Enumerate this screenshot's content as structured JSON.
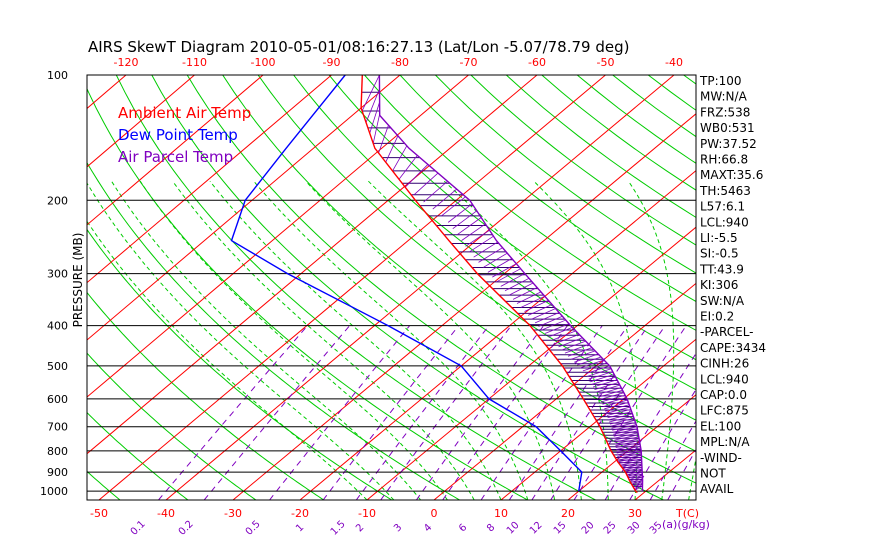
{
  "chart_data": {
    "type": "line",
    "title": "AIRS SkewT Diagram 2010-05-01/08:16:27.13 (Lat/Lon -5.07/78.79 deg)",
    "ylabel": "PRESSURE (MB)",
    "y_scale": "log",
    "ylim": [
      1050,
      100
    ],
    "pressure_ticks": [
      100,
      200,
      300,
      400,
      500,
      600,
      700,
      800,
      900,
      1000
    ],
    "temp_ticks_top": [
      -120,
      -110,
      -100,
      -90,
      -80,
      -70,
      -60,
      -50,
      -40
    ],
    "temp_ticks_bottom": [
      -50,
      -40,
      -30,
      -20,
      -10,
      0,
      10,
      20,
      30
    ],
    "temp_axis_label": "T(C)",
    "mixing_ratio_ticks": [
      0.1,
      0.2,
      0.5,
      1,
      1.5,
      2,
      3,
      4,
      6,
      8,
      10,
      12,
      15,
      20,
      25,
      30,
      35
    ],
    "mixing_ratio_label": "(a)(g/kg)",
    "legend": [
      {
        "label": "Ambient Air Temp",
        "color": "#ff0000"
      },
      {
        "label": "Dew Point Temp",
        "color": "#0000ff"
      },
      {
        "label": "Air Parcel Temp",
        "color": "#8000c0"
      }
    ],
    "series": [
      {
        "name": "Ambient Air Temp",
        "color": "#ff0000",
        "points": [
          [
            100,
            -85.5
          ],
          [
            120,
            -80
          ],
          [
            150,
            -71
          ],
          [
            200,
            -56
          ],
          [
            250,
            -44
          ],
          [
            300,
            -34
          ],
          [
            400,
            -17
          ],
          [
            500,
            -5
          ],
          [
            600,
            4
          ],
          [
            700,
            11.5
          ],
          [
            800,
            17.5
          ],
          [
            850,
            20.5
          ],
          [
            900,
            23.5
          ],
          [
            950,
            26
          ],
          [
            1000,
            28.5
          ],
          [
            1008,
            29
          ]
        ]
      },
      {
        "name": "Dew Point Temp",
        "color": "#0000ff",
        "points": [
          [
            100,
            -88
          ],
          [
            150,
            -84
          ],
          [
            200,
            -81
          ],
          [
            250,
            -76
          ],
          [
            300,
            -62
          ],
          [
            400,
            -38
          ],
          [
            500,
            -20
          ],
          [
            600,
            -10
          ],
          [
            700,
            2
          ],
          [
            800,
            10
          ],
          [
            900,
            17
          ],
          [
            1000,
            20
          ]
        ]
      },
      {
        "name": "Air Parcel Temp",
        "color": "#8000c0",
        "points": [
          [
            100,
            -83
          ],
          [
            125,
            -76
          ],
          [
            150,
            -66
          ],
          [
            200,
            -48
          ],
          [
            250,
            -37
          ],
          [
            300,
            -27
          ],
          [
            400,
            -11
          ],
          [
            500,
            2
          ],
          [
            600,
            10.5
          ],
          [
            700,
            17
          ],
          [
            800,
            22
          ],
          [
            900,
            26
          ],
          [
            940,
            27.5
          ],
          [
            1000,
            29.5
          ]
        ]
      }
    ],
    "indices": [
      "TP:100",
      "MW:N/A",
      "FRZ:538",
      "WB0:531",
      "PW:37.52",
      "RH:66.8",
      "MAXT:35.6",
      "TH:5463",
      "L57:6.1",
      "LCL:940",
      "LI:-5.5",
      "SI:-0.5",
      "TT:43.9",
      "KI:306",
      "SW:N/A",
      "EI:0.2",
      "-PARCEL-",
      "CAPE:3434",
      "CINH:26",
      "LCL:940",
      "CAP:0.0",
      "LFC:875",
      "EL:100",
      "MPL:N/A",
      "-WIND-",
      "NOT",
      "AVAIL"
    ]
  }
}
